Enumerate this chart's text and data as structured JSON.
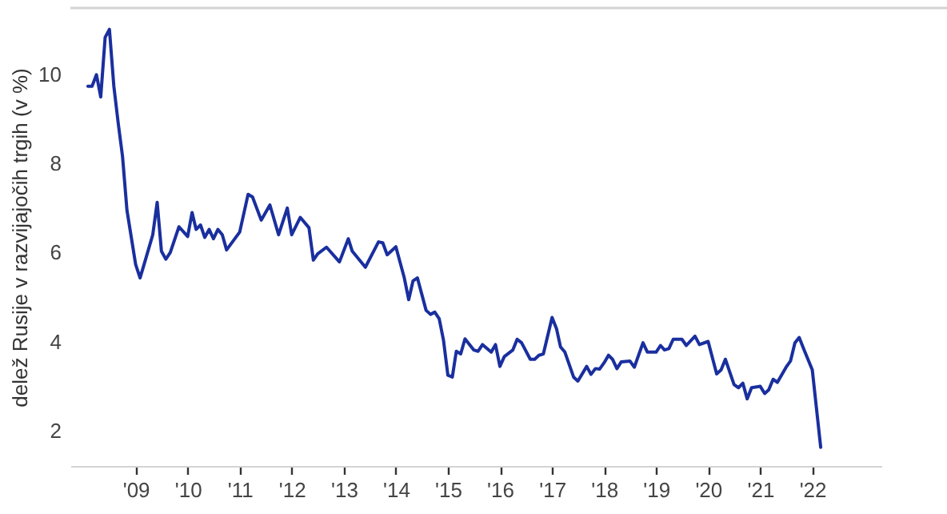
{
  "chart_data": {
    "type": "line",
    "ylabel": "delež Rusije v razvijajočih trgih (v %)",
    "x": [
      "2008-02",
      "2008-03",
      "2008-04",
      "2008-05",
      "2008-06",
      "2008-07",
      "2008-08",
      "2008-09",
      "2008-10",
      "2008-11",
      "2009-01",
      "2009-02",
      "2009-03",
      "2009-05",
      "2009-06",
      "2009-07",
      "2009-08",
      "2009-09",
      "2009-11",
      "2010-01",
      "2010-02",
      "2010-03",
      "2010-04",
      "2010-05",
      "2010-06",
      "2010-07",
      "2010-08",
      "2010-09",
      "2010-10",
      "2011-01",
      "2011-03",
      "2011-04",
      "2011-06",
      "2011-08",
      "2011-10",
      "2011-12",
      "2012-01",
      "2012-03",
      "2012-05",
      "2012-06",
      "2012-07",
      "2012-09",
      "2012-12",
      "2013-02",
      "2013-03",
      "2013-06",
      "2013-09",
      "2013-10",
      "2013-11",
      "2014-01",
      "2014-03",
      "2014-04",
      "2014-05",
      "2014-06",
      "2014-08",
      "2014-09",
      "2014-10",
      "2014-11",
      "2014-12",
      "2015-01",
      "2015-02",
      "2015-03",
      "2015-04",
      "2015-05",
      "2015-07",
      "2015-08",
      "2015-09",
      "2015-11",
      "2015-12",
      "2016-01",
      "2016-02",
      "2016-04",
      "2016-05",
      "2016-06",
      "2016-08",
      "2016-09",
      "2016-10",
      "2016-11",
      "2017-01",
      "2017-02",
      "2017-03",
      "2017-04",
      "2017-06",
      "2017-07",
      "2017-09",
      "2017-10",
      "2017-11",
      "2017-12",
      "2018-01",
      "2018-02",
      "2018-03",
      "2018-04",
      "2018-05",
      "2018-07",
      "2018-08",
      "2018-10",
      "2018-11",
      "2019-01",
      "2019-02",
      "2019-03",
      "2019-04",
      "2019-05",
      "2019-07",
      "2019-08",
      "2019-10",
      "2019-11",
      "2020-01",
      "2020-03",
      "2020-04",
      "2020-05",
      "2020-07",
      "2020-08",
      "2020-09",
      "2020-10",
      "2020-11",
      "2021-01",
      "2021-02",
      "2021-03",
      "2021-04",
      "2021-05",
      "2021-07",
      "2021-08",
      "2021-09",
      "2021-10",
      "2021-11",
      "2022-01",
      "2022-03"
    ],
    "series": [
      {
        "color": "#1a2f9e",
        "values": [
          9.74,
          9.74,
          10.0,
          9.5,
          10.84,
          11.02,
          9.74,
          8.9,
          8.16,
          6.95,
          5.73,
          5.43,
          5.73,
          6.4,
          7.13,
          6.03,
          5.85,
          6.0,
          6.58,
          6.36,
          6.9,
          6.52,
          6.62,
          6.34,
          6.52,
          6.31,
          6.52,
          6.4,
          6.06,
          6.46,
          7.31,
          7.25,
          6.73,
          7.07,
          6.4,
          7.0,
          6.4,
          6.79,
          6.56,
          5.83,
          5.97,
          6.12,
          5.79,
          6.31,
          6.03,
          5.67,
          6.24,
          6.22,
          5.95,
          6.13,
          5.43,
          4.94,
          5.36,
          5.43,
          4.7,
          4.61,
          4.66,
          4.51,
          4.03,
          3.24,
          3.2,
          3.78,
          3.72,
          4.06,
          3.81,
          3.78,
          3.93,
          3.76,
          3.93,
          3.44,
          3.66,
          3.81,
          4.05,
          3.97,
          3.6,
          3.6,
          3.69,
          3.72,
          4.54,
          4.29,
          3.88,
          3.76,
          3.2,
          3.11,
          3.44,
          3.26,
          3.39,
          3.38,
          3.52,
          3.69,
          3.6,
          3.39,
          3.54,
          3.56,
          3.42,
          3.97,
          3.76,
          3.76,
          3.91,
          3.81,
          3.84,
          4.05,
          4.05,
          3.91,
          4.12,
          3.93,
          4.0,
          3.27,
          3.36,
          3.6,
          3.03,
          2.96,
          3.06,
          2.71,
          2.96,
          2.99,
          2.83,
          2.91,
          3.15,
          3.08,
          3.42,
          3.56,
          3.97,
          4.09,
          3.84,
          3.36,
          1.62
        ]
      }
    ],
    "xlim": [
      "2007-10",
      "2023-05"
    ],
    "xticks": [
      {
        "value": "2009-01",
        "label": "'09"
      },
      {
        "value": "2010-01",
        "label": "'10"
      },
      {
        "value": "2011-01",
        "label": "'11"
      },
      {
        "value": "2012-01",
        "label": "'12"
      },
      {
        "value": "2013-01",
        "label": "'13"
      },
      {
        "value": "2014-01",
        "label": "'14"
      },
      {
        "value": "2015-01",
        "label": "'15"
      },
      {
        "value": "2016-01",
        "label": "'16"
      },
      {
        "value": "2017-01",
        "label": "'17"
      },
      {
        "value": "2018-01",
        "label": "'18"
      },
      {
        "value": "2019-01",
        "label": "'19"
      },
      {
        "value": "2020-01",
        "label": "'20"
      },
      {
        "value": "2021-01",
        "label": "'21"
      },
      {
        "value": "2022-01",
        "label": "'22"
      }
    ],
    "ylim": [
      1.2,
      11.5
    ],
    "yticks": [
      2,
      4,
      6,
      8,
      10
    ],
    "grid": false,
    "marker": "none",
    "line_style": "solid"
  }
}
